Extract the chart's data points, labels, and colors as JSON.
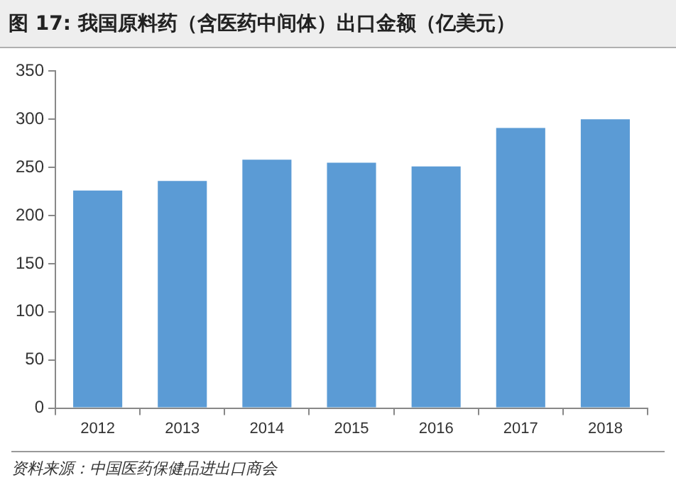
{
  "chart_data": {
    "type": "bar",
    "title": "图 17: 我国原料药（含医药中间体）出口金额（亿美元）",
    "categories": [
      "2012",
      "2013",
      "2014",
      "2015",
      "2016",
      "2017",
      "2018"
    ],
    "values": [
      226,
      236,
      258,
      255,
      251,
      291,
      300
    ],
    "color": "#5b9bd5",
    "ylim": [
      0,
      350
    ],
    "yticks": [
      0,
      50,
      100,
      150,
      200,
      250,
      300,
      350
    ],
    "grid": false,
    "legend": false,
    "annotations": [
      "资料来源：中国医药保健品进出口商会"
    ]
  }
}
